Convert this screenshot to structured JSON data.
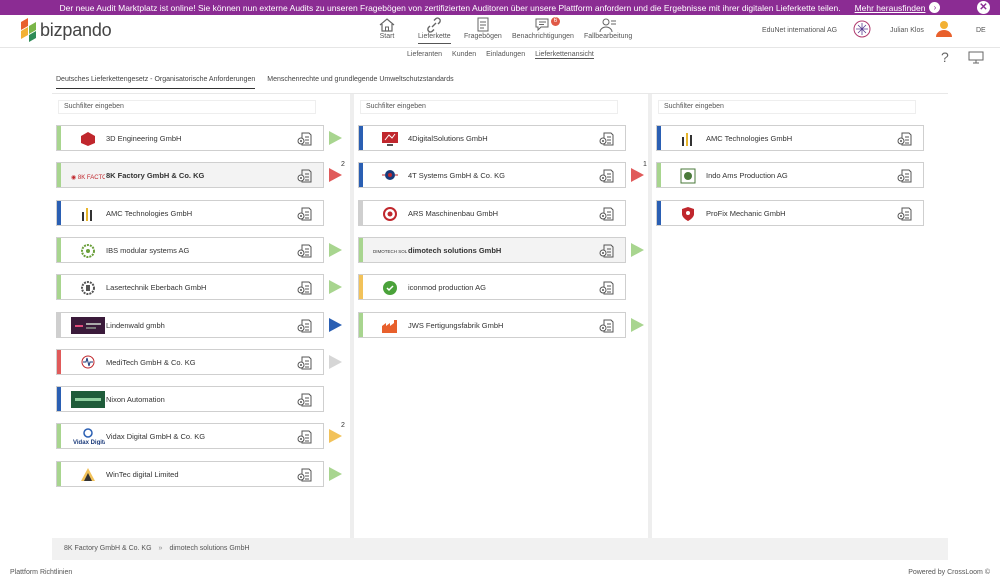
{
  "banner": {
    "text": "Der neue Audit Marktplatz ist online! Sie können nun externe Audits zu unseren Fragebögen von zertifizierten Auditoren über unsere Plattform anfordern und die Ergebnisse mit ihrer digitalen Lieferkette teilen.",
    "link": "Mehr herausfinden",
    "arrow": "›",
    "close": "✕"
  },
  "logo": {
    "text": "bizpando"
  },
  "nav": [
    {
      "label": "Start",
      "icon": "home-icon"
    },
    {
      "label": "Lieferkette",
      "icon": "link-icon"
    },
    {
      "label": "Fragebögen",
      "icon": "questionnaire-icon"
    },
    {
      "label": "Benachrichtigungen",
      "icon": "chat-icon",
      "badge": "6"
    },
    {
      "label": "Fallbearbeitung",
      "icon": "users-icon"
    }
  ],
  "header": {
    "org": "EduNet international AG",
    "user": "Julian Klos",
    "lang": "DE",
    "help": "?"
  },
  "subnav": [
    "Lieferanten",
    "Kunden",
    "Einladungen",
    "Lieferkettenansicht"
  ],
  "tabs": [
    "Deutsches Lieferkettengesetz - Organisatorische Anforderungen",
    "Menschenrechte und grundlegende Umweltschutzstandards"
  ],
  "filter_placeholder": "Suchfilter eingeben",
  "columns": [
    {
      "cards": [
        {
          "name": "3D Engineering GmbH",
          "bar": "#a8d58f",
          "tri": "#a8d58f",
          "logo": "red-cube-logo-icon"
        },
        {
          "name": "8K Factory GmbH & Co. KG",
          "bar": "#a8d58f",
          "tri": "#e05a5a",
          "count": "2",
          "selected": true,
          "logo": "8k-factory-logo-icon"
        },
        {
          "name": "AMC Technologies GmbH",
          "bar": "#2a5fb3",
          "tri": "",
          "logo": "amc-bars-logo-icon"
        },
        {
          "name": "IBS modular systems AG",
          "bar": "#a8d58f",
          "tri": "#a8d58f",
          "logo": "ibs-gear-logo-icon"
        },
        {
          "name": "Lasertechnik Eberbach GmbH",
          "bar": "#a8d58f",
          "tri": "#a8d58f",
          "logo": "gear-logo-icon"
        },
        {
          "name": "Lindenwald gmbh",
          "bar": "#cfcfcf",
          "tri": "#2a5fb3",
          "logo": "lindenwald-logo-icon"
        },
        {
          "name": "MediTech GmbH & Co. KG",
          "bar": "#e05a5a",
          "tri": "#d6d6d6",
          "logo": "meditech-logo-icon"
        },
        {
          "name": "Nixon Automation",
          "bar": "#2a5fb3",
          "tri": "",
          "logo": "nixon-logo-icon"
        },
        {
          "name": "Vidax Digital GmbH & Co. KG",
          "bar": "#a8d58f",
          "tri": "#f2c25a",
          "count": "2",
          "logo": "vidax-logo-icon"
        },
        {
          "name": "WinTec digital Limited",
          "bar": "#a8d58f",
          "tri": "#a8d58f",
          "logo": "wintec-logo-icon"
        }
      ]
    },
    {
      "cards": [
        {
          "name": "4DigitalSolutions GmbH",
          "bar": "#2a5fb3",
          "tri": "",
          "logo": "4digital-logo-icon"
        },
        {
          "name": "4T Systems GmbH & Co. KG",
          "bar": "#2a5fb3",
          "tri": "#e05a5a",
          "count": "1",
          "logo": "4t-systems-logo-icon"
        },
        {
          "name": "ARS Maschinenbau GmbH",
          "bar": "#cfcfcf",
          "tri": "",
          "logo": "ars-logo-icon"
        },
        {
          "name": "dimotech solutions GmbH",
          "bar": "#a8d58f",
          "tri": "#a8d58f",
          "selected": true,
          "logo": "dimotech-logo-icon"
        },
        {
          "name": "iconmod production AG",
          "bar": "#f2c25a",
          "tri": "",
          "logo": "iconmod-logo-icon"
        },
        {
          "name": "JWS Fertigungsfabrik GmbH",
          "bar": "#a8d58f",
          "tri": "#a8d58f",
          "logo": "jws-factory-logo-icon"
        }
      ]
    },
    {
      "cards": [
        {
          "name": "AMC Technologies GmbH",
          "bar": "#2a5fb3",
          "tri": "",
          "logo": "amc-bars-logo-icon"
        },
        {
          "name": "Indo Ams Production AG",
          "bar": "#a8d58f",
          "tri": "",
          "logo": "indo-ams-logo-icon"
        },
        {
          "name": "ProFix Mechanic GmbH",
          "bar": "#2a5fb3",
          "tri": "",
          "logo": "profix-shield-logo-icon"
        }
      ]
    }
  ],
  "breadcrumb": [
    "8K Factory GmbH & Co. KG",
    "dimotech solutions GmbH"
  ],
  "breadcrumb_sep": "»",
  "footer": {
    "left": "Plattform Richtlinien",
    "right": "Powered by CrossLoom ©"
  }
}
